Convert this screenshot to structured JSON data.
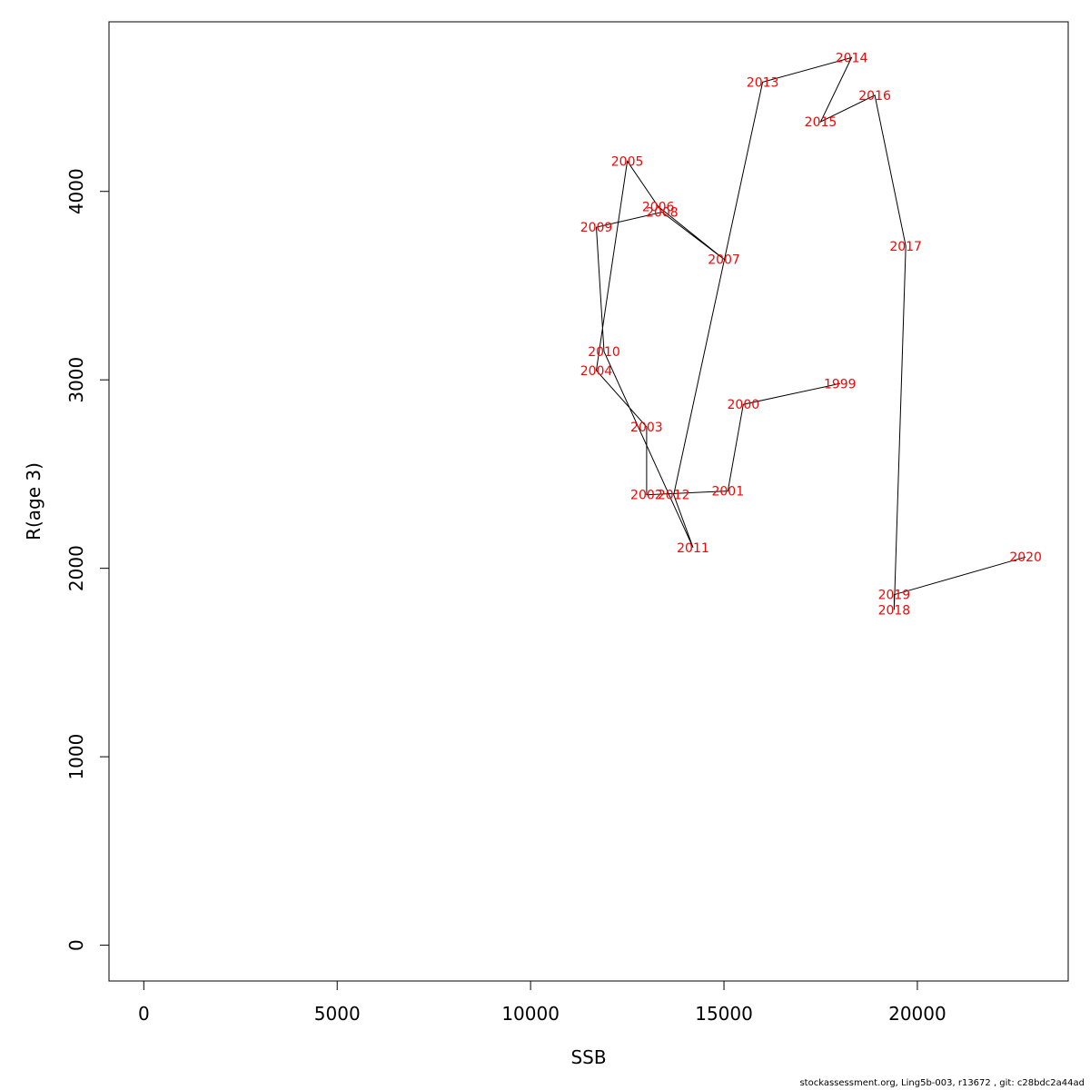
{
  "chart_data": {
    "type": "line",
    "xlabel": "SSB",
    "ylabel": "R(age 3)",
    "xlim": [
      -900,
      23900
    ],
    "ylim": [
      -190,
      4900
    ],
    "xticks": [
      0,
      5000,
      10000,
      15000,
      20000
    ],
    "yticks": [
      0,
      1000,
      2000,
      3000,
      4000
    ],
    "line_color": "#000000",
    "label_color": "#ff0000",
    "points": [
      {
        "label": "1999",
        "x": 18000,
        "y": 2980
      },
      {
        "label": "2000",
        "x": 15500,
        "y": 2870
      },
      {
        "label": "2001",
        "x": 15100,
        "y": 2410
      },
      {
        "label": "2002",
        "x": 13000,
        "y": 2390
      },
      {
        "label": "2003",
        "x": 13000,
        "y": 2750
      },
      {
        "label": "2004",
        "x": 11700,
        "y": 3050
      },
      {
        "label": "2005",
        "x": 12500,
        "y": 4160
      },
      {
        "label": "2006",
        "x": 13300,
        "y": 3920
      },
      {
        "label": "2007",
        "x": 15000,
        "y": 3640
      },
      {
        "label": "2008",
        "x": 13400,
        "y": 3890
      },
      {
        "label": "2009",
        "x": 11700,
        "y": 3810
      },
      {
        "label": "2010",
        "x": 11900,
        "y": 3150
      },
      {
        "label": "2011",
        "x": 14200,
        "y": 2110
      },
      {
        "label": "2012",
        "x": 13700,
        "y": 2390
      },
      {
        "label": "2013",
        "x": 16000,
        "y": 4580
      },
      {
        "label": "2014",
        "x": 18300,
        "y": 4710
      },
      {
        "label": "2015",
        "x": 17500,
        "y": 4370
      },
      {
        "label": "2016",
        "x": 18900,
        "y": 4510
      },
      {
        "label": "2017",
        "x": 19700,
        "y": 3710
      },
      {
        "label": "2018",
        "x": 19400,
        "y": 1780
      },
      {
        "label": "2019",
        "x": 19400,
        "y": 1860
      },
      {
        "label": "2020",
        "x": 22800,
        "y": 2060
      }
    ]
  },
  "footer": {
    "text": "stockassessment.org, Ling5b-003, r13672 , git: c28bdc2a44ad"
  }
}
